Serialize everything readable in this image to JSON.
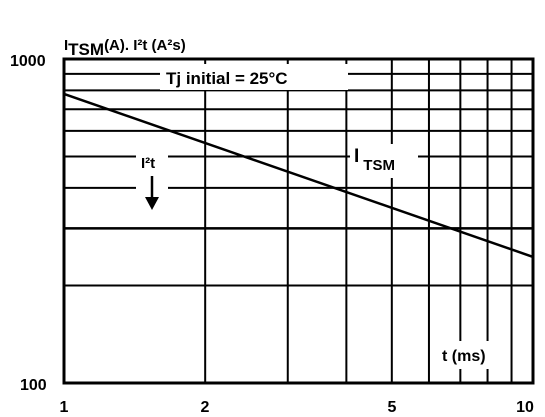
{
  "chart_data": {
    "type": "line",
    "title": "",
    "ylabel_parts": {
      "base": "I",
      "sub": "TSM",
      "rest": "(A). I²t (A²s)"
    },
    "xlabel": "t (ms)",
    "x_scale": "log",
    "y_scale": "log",
    "xlim": [
      1,
      10
    ],
    "ylim": [
      100,
      1000
    ],
    "x_ticks": [
      "1",
      "2",
      "5",
      "10"
    ],
    "x_tick_values": [
      1,
      2,
      5,
      10
    ],
    "y_ticks": [
      "100",
      "1000"
    ],
    "y_tick_values": [
      100,
      1000
    ],
    "grid": true,
    "condition_label": "Tj initial = 25°C",
    "series": [
      {
        "name": "I TSM",
        "label_base": "I",
        "label_sub": "TSM",
        "x": [
          1,
          10
        ],
        "y": [
          780,
          245
        ]
      },
      {
        "name": "I²t",
        "label": "I²t",
        "arrow": "down",
        "x": [
          1,
          10
        ],
        "y": [
          300,
          300
        ]
      }
    ]
  }
}
